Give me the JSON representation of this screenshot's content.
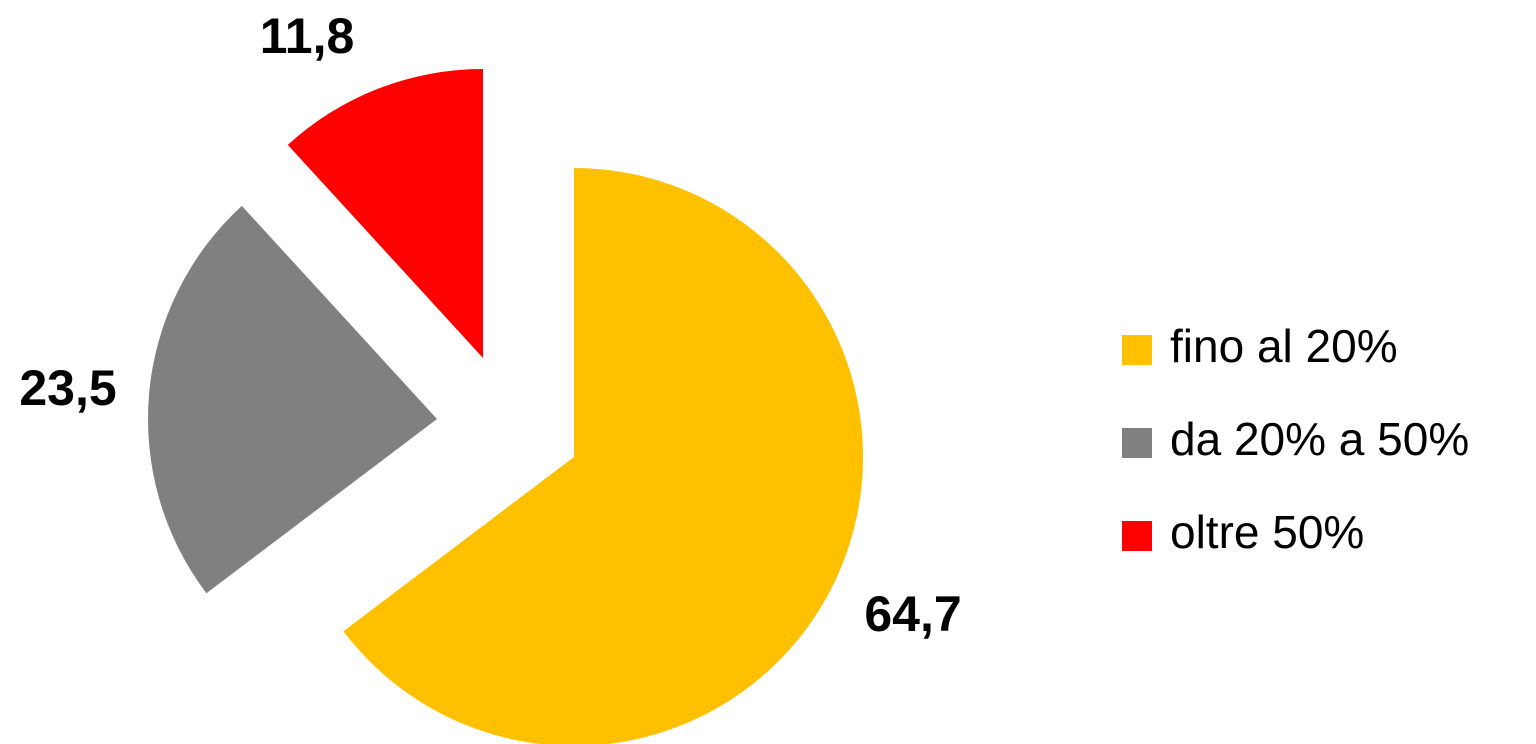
{
  "chart_data": {
    "type": "pie",
    "categories": [
      "fino al 20%",
      "da 20% a 50%",
      "oltre 50%"
    ],
    "values": [
      64.7,
      23.5,
      11.8
    ],
    "value_labels": [
      "64,7",
      "23,5",
      "11,8"
    ],
    "colors": [
      "#ffc000",
      "#808080",
      "#ff0000"
    ],
    "legend": "right"
  }
}
